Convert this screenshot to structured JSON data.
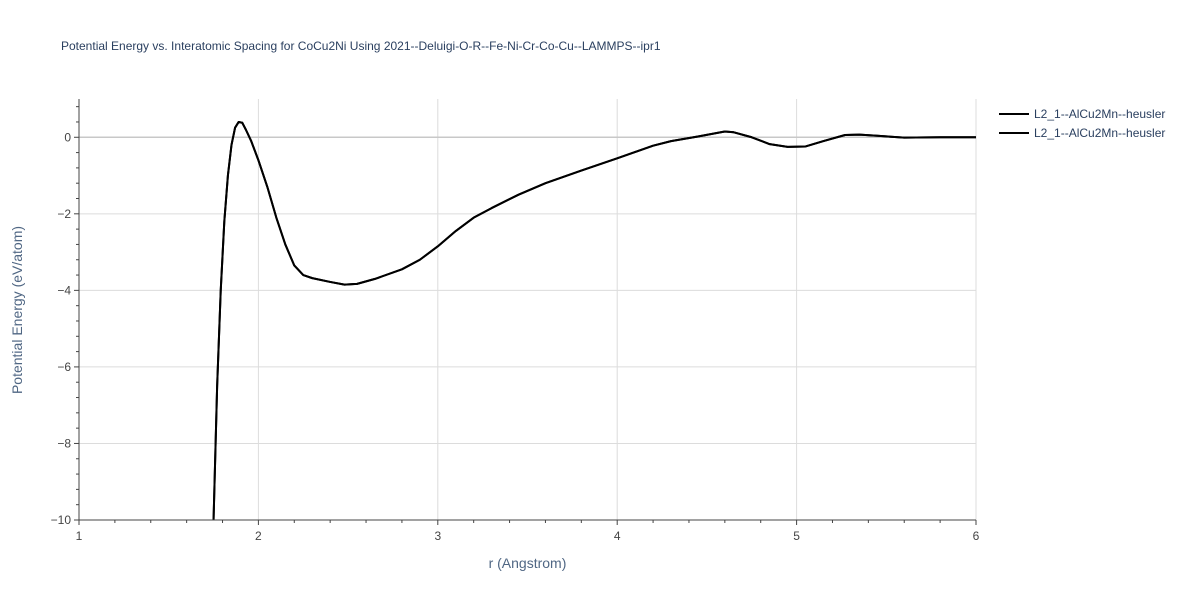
{
  "chart_data": {
    "type": "line",
    "title": "Potential Energy vs. Interatomic Spacing for CoCu2Ni Using 2021--Deluigi-O-R--Fe-Ni-Cr-Co-Cu--LAMMPS--ipr1",
    "xlabel": "r (Angstrom)",
    "ylabel": "Potential Energy (eV/atom)",
    "xlim": [
      1,
      6
    ],
    "ylim": [
      -10,
      1
    ],
    "x_ticks": [
      1,
      2,
      3,
      4,
      5,
      6
    ],
    "y_ticks": [
      0,
      -2,
      -4,
      -6,
      -8,
      -10
    ],
    "x_tick_labels": [
      "1",
      "2",
      "3",
      "4",
      "5",
      "6"
    ],
    "y_tick_labels": [
      "0",
      "−2",
      "−4",
      "−6",
      "−8",
      "−10"
    ],
    "grid": true,
    "legend_position": "top-right",
    "line_color": "#000000",
    "series": [
      {
        "name": "L2_1--AlCu2Mn--heusler",
        "x": [
          1.75,
          1.77,
          1.79,
          1.81,
          1.83,
          1.85,
          1.87,
          1.89,
          1.91,
          1.93,
          1.96,
          2.0,
          2.05,
          2.1,
          2.15,
          2.2,
          2.25,
          2.3,
          2.4,
          2.48,
          2.55,
          2.65,
          2.8,
          2.9,
          3.0,
          3.1,
          3.2,
          3.3,
          3.45,
          3.6,
          3.8,
          4.0,
          4.2,
          4.3,
          4.45,
          4.6,
          4.65,
          4.75,
          4.85,
          4.95,
          5.05,
          5.15,
          5.27,
          5.35,
          5.45,
          5.6,
          5.8,
          6.0
        ],
        "y": [
          -10.0,
          -6.5,
          -4.0,
          -2.2,
          -1.0,
          -0.2,
          0.25,
          0.4,
          0.38,
          0.2,
          -0.1,
          -0.6,
          -1.3,
          -2.1,
          -2.8,
          -3.35,
          -3.6,
          -3.68,
          -3.78,
          -3.85,
          -3.83,
          -3.7,
          -3.45,
          -3.2,
          -2.85,
          -2.45,
          -2.1,
          -1.85,
          -1.5,
          -1.2,
          -0.87,
          -0.55,
          -0.22,
          -0.1,
          0.02,
          0.15,
          0.13,
          0.0,
          -0.18,
          -0.25,
          -0.24,
          -0.1,
          0.06,
          0.07,
          0.04,
          -0.01,
          0.0,
          0.0
        ]
      },
      {
        "name": "L2_1--AlCu2Mn--heusler",
        "x": [
          1.75,
          1.77,
          1.79,
          1.81,
          1.83,
          1.85,
          1.87,
          1.89,
          1.91,
          1.93,
          1.96,
          2.0,
          2.05,
          2.1,
          2.15,
          2.2,
          2.25,
          2.3,
          2.4,
          2.48,
          2.55,
          2.65,
          2.8,
          2.9,
          3.0,
          3.1,
          3.2,
          3.3,
          3.45,
          3.6,
          3.8,
          4.0,
          4.2,
          4.3,
          4.45,
          4.6,
          4.65,
          4.75,
          4.85,
          4.95,
          5.05,
          5.15,
          5.27,
          5.35,
          5.45,
          5.6,
          5.8,
          6.0
        ],
        "y": [
          -10.0,
          -6.5,
          -4.0,
          -2.2,
          -1.0,
          -0.2,
          0.25,
          0.4,
          0.38,
          0.2,
          -0.1,
          -0.6,
          -1.3,
          -2.1,
          -2.8,
          -3.35,
          -3.6,
          -3.68,
          -3.78,
          -3.85,
          -3.83,
          -3.7,
          -3.45,
          -3.2,
          -2.85,
          -2.45,
          -2.1,
          -1.85,
          -1.5,
          -1.2,
          -0.87,
          -0.55,
          -0.22,
          -0.1,
          0.02,
          0.15,
          0.13,
          0.0,
          -0.18,
          -0.25,
          -0.24,
          -0.1,
          0.06,
          0.07,
          0.04,
          -0.01,
          0.0,
          0.0
        ]
      }
    ]
  }
}
